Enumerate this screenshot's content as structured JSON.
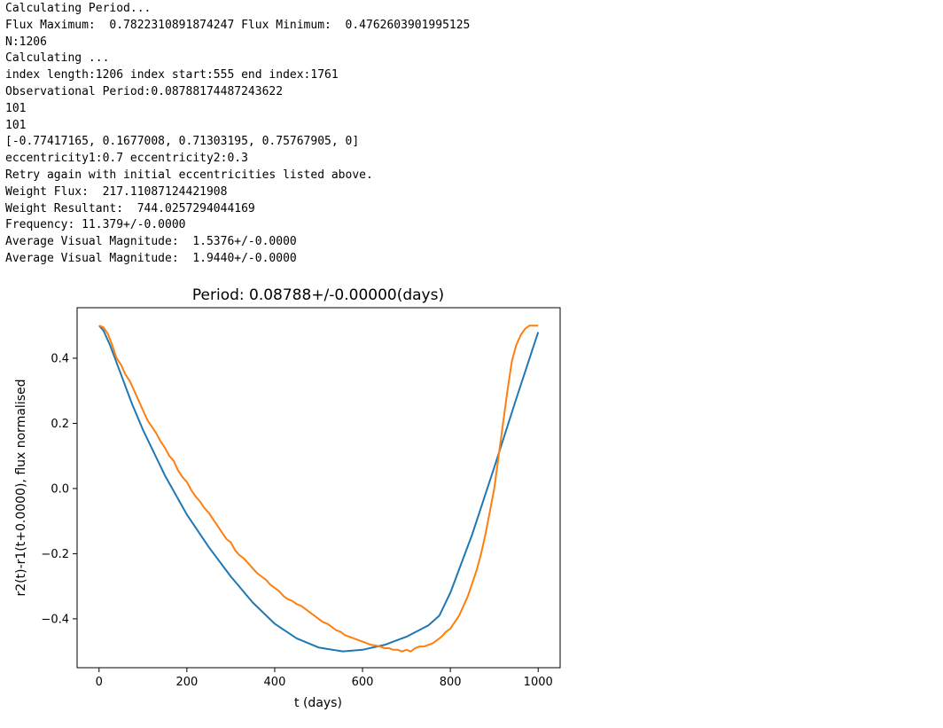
{
  "console": {
    "lines": [
      "Calculating Period...",
      "Flux Maximum:  0.7822310891874247 Flux Minimum:  0.4762603901995125",
      "N:1206",
      "Calculating ...",
      "index length:1206 index start:555 end index:1761",
      "Observational Period:0.08788174487243622",
      "101",
      "101",
      "[-0.77417165, 0.1677008, 0.71303195, 0.75767905, 0]",
      "eccentricity1:0.7 eccentricity2:0.3",
      "Retry again with initial eccentricities listed above.",
      "Weight Flux:  217.11087124421908",
      "Weight Resultant:  744.0257294044169",
      "Frequency: 11.379+/-0.0000",
      "Average Visual Magnitude:  1.5376+/-0.0000",
      "Average Visual Magnitude:  1.9440+/-0.0000"
    ]
  },
  "chart_data": {
    "type": "line",
    "title": "Period: 0.08788+/-0.00000(days)",
    "xlabel": "t (days)",
    "ylabel": "r2(t)-r1(t+0.0000), flux  normalised",
    "xlim": [
      -50,
      1050
    ],
    "ylim": [
      -0.55,
      0.555
    ],
    "xticks": [
      0,
      200,
      400,
      600,
      800,
      1000
    ],
    "xtick_labels": [
      "0",
      "200",
      "400",
      "600",
      "800",
      "1000"
    ],
    "yticks": [
      -0.4,
      -0.2,
      0.0,
      0.2,
      0.4
    ],
    "ytick_labels": [
      "−0.4",
      "−0.2",
      "0.0",
      "0.2",
      "0.4"
    ],
    "grid": false,
    "series": [
      {
        "color": "#1f77b4",
        "x": [
          0,
          10,
          25,
          50,
          75,
          100,
          125,
          150,
          200,
          250,
          300,
          350,
          400,
          450,
          500,
          555,
          600,
          650,
          700,
          750,
          775,
          800,
          850,
          900,
          950,
          1000
        ],
        "y": [
          0.5,
          0.485,
          0.44,
          0.35,
          0.26,
          0.18,
          0.11,
          0.04,
          -0.08,
          -0.18,
          -0.27,
          -0.35,
          -0.415,
          -0.46,
          -0.488,
          -0.5,
          -0.495,
          -0.48,
          -0.455,
          -0.42,
          -0.39,
          -0.32,
          -0.14,
          0.065,
          0.275,
          0.48
        ]
      },
      {
        "color": "#ff7f0e",
        "x": [
          0,
          10,
          20,
          30,
          40,
          50,
          60,
          70,
          80,
          90,
          100,
          110,
          120,
          130,
          140,
          150,
          160,
          170,
          180,
          190,
          200,
          210,
          220,
          230,
          240,
          250,
          260,
          270,
          280,
          290,
          300,
          310,
          320,
          330,
          340,
          350,
          360,
          370,
          380,
          390,
          400,
          410,
          420,
          430,
          440,
          450,
          460,
          470,
          480,
          490,
          500,
          510,
          520,
          530,
          540,
          550,
          560,
          570,
          580,
          590,
          600,
          610,
          620,
          630,
          640,
          650,
          660,
          670,
          680,
          690,
          700,
          710,
          720,
          730,
          740,
          750,
          760,
          770,
          780,
          790,
          800,
          810,
          820,
          830,
          840,
          850,
          860,
          870,
          880,
          890,
          900,
          910,
          920,
          930,
          940,
          950,
          960,
          970,
          980,
          990,
          1000
        ],
        "y": [
          0.5,
          0.495,
          0.475,
          0.44,
          0.4,
          0.38,
          0.35,
          0.33,
          0.3,
          0.27,
          0.24,
          0.21,
          0.19,
          0.17,
          0.145,
          0.125,
          0.1,
          0.085,
          0.055,
          0.035,
          0.02,
          -0.005,
          -0.025,
          -0.04,
          -0.06,
          -0.075,
          -0.095,
          -0.115,
          -0.135,
          -0.155,
          -0.165,
          -0.19,
          -0.205,
          -0.215,
          -0.23,
          -0.245,
          -0.26,
          -0.27,
          -0.28,
          -0.295,
          -0.305,
          -0.315,
          -0.33,
          -0.34,
          -0.345,
          -0.355,
          -0.36,
          -0.37,
          -0.38,
          -0.39,
          -0.4,
          -0.41,
          -0.415,
          -0.425,
          -0.435,
          -0.44,
          -0.45,
          -0.455,
          -0.46,
          -0.465,
          -0.47,
          -0.475,
          -0.48,
          -0.482,
          -0.485,
          -0.49,
          -0.49,
          -0.495,
          -0.495,
          -0.5,
          -0.495,
          -0.5,
          -0.49,
          -0.485,
          -0.485,
          -0.48,
          -0.475,
          -0.465,
          -0.455,
          -0.44,
          -0.43,
          -0.41,
          -0.39,
          -0.36,
          -0.33,
          -0.29,
          -0.25,
          -0.2,
          -0.14,
          -0.07,
          0.0,
          0.1,
          0.2,
          0.3,
          0.39,
          0.44,
          0.47,
          0.49,
          0.5,
          0.5,
          0.5
        ]
      }
    ]
  }
}
